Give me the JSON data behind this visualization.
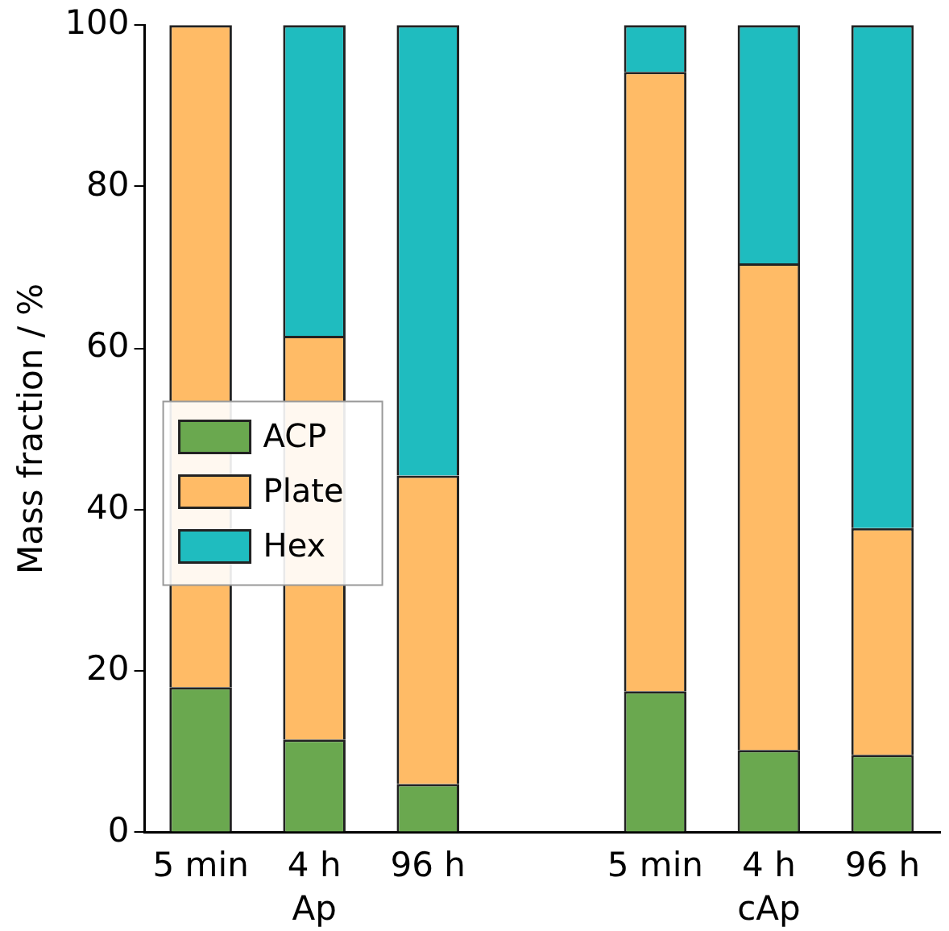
{
  "chart_data": {
    "type": "bar",
    "stacked": true,
    "ylabel": "Mass fraction / %",
    "categories": [
      "5 min",
      "4 h",
      "96 h",
      null,
      "5 min",
      "4 h",
      "96 h"
    ],
    "series": [
      {
        "name": "ACP",
        "color": "#6aa84f",
        "values": [
          18,
          11.5,
          6,
          null,
          17.5,
          10.2,
          9.6
        ]
      },
      {
        "name": "Plate",
        "color": "#ffbb66",
        "values": [
          82,
          50,
          38.2,
          null,
          76.7,
          60.3,
          28.1
        ]
      },
      {
        "name": "Hex",
        "color": "#1fbcbf",
        "values": [
          null,
          38.5,
          55.8,
          null,
          5.8,
          29.5,
          62.3
        ]
      }
    ],
    "ylim": [
      0,
      100
    ],
    "yticks": [
      0,
      20,
      40,
      60,
      80,
      100
    ],
    "grid": false,
    "legend": "center left",
    "annotations": [
      "Ap",
      "cAp"
    ]
  }
}
